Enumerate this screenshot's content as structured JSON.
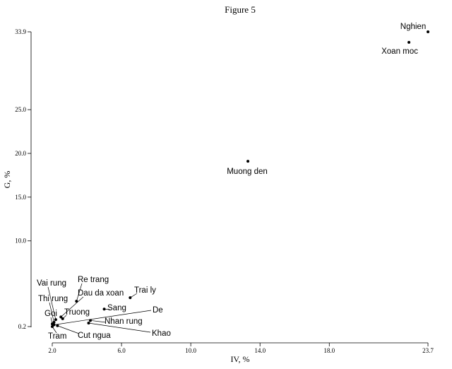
{
  "chart_data": {
    "type": "scatter",
    "title": "Figure 5",
    "xlabel": "IV, %",
    "ylabel": "G, %",
    "xlim": [
      2.0,
      23.7
    ],
    "ylim": [
      0.2,
      33.9
    ],
    "xticks": [
      "2.0",
      "6.0",
      "10.0",
      "14.0",
      "18.0",
      "23.7"
    ],
    "yticks": [
      "0.2",
      "10.0",
      "15.0",
      "20.0",
      "25.0",
      "33.9"
    ],
    "grid": false,
    "points": [
      {
        "label": "Nghien",
        "x": 23.7,
        "y": 33.9
      },
      {
        "label": "Xoan moc",
        "x": 22.6,
        "y": 32.7
      },
      {
        "label": "Muong den",
        "x": 13.3,
        "y": 19.1
      },
      {
        "label": "Trai ly",
        "x": 6.5,
        "y": 3.5
      },
      {
        "label": "Re trang",
        "x": 3.4,
        "y": 3.1
      },
      {
        "label": "Sang",
        "x": 5.0,
        "y": 2.2
      },
      {
        "label": "Dau da xoan",
        "x": 2.5,
        "y": 1.3
      },
      {
        "label": "Truong",
        "x": 2.6,
        "y": 1.1
      },
      {
        "label": "Vai rung",
        "x": 2.2,
        "y": 1.0
      },
      {
        "label": "Thi rung",
        "x": 2.1,
        "y": 0.7
      },
      {
        "label": "Goi",
        "x": 2.0,
        "y": 0.5
      },
      {
        "label": "Tram",
        "x": 2.0,
        "y": 0.2
      },
      {
        "label": "De",
        "x": 2.1,
        "y": 0.4
      },
      {
        "label": "Nhan rung",
        "x": 4.2,
        "y": 0.9
      },
      {
        "label": "Cut ngua",
        "x": 2.3,
        "y": 0.3
      },
      {
        "label": "Khao",
        "x": 4.1,
        "y": 0.6
      }
    ]
  }
}
